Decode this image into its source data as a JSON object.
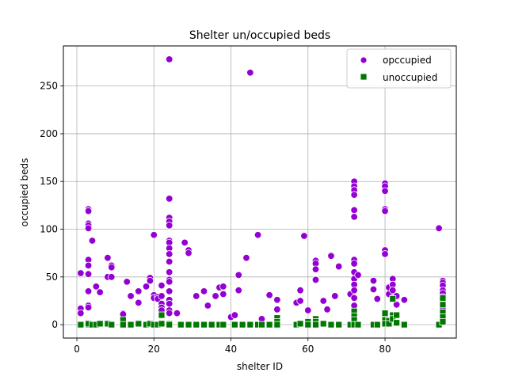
{
  "chart_data": {
    "type": "scatter",
    "title": "Shelter un/occupied beds",
    "xlabel": "shelter ID",
    "ylabel": "occupied beds",
    "xlim": [
      -3.5,
      98.5
    ],
    "ylim": [
      -14,
      292
    ],
    "xticks": [
      0,
      20,
      40,
      60,
      80
    ],
    "yticks": [
      0,
      50,
      100,
      150,
      200,
      250
    ],
    "grid": true,
    "legend_position": "top-right",
    "series": [
      {
        "name": "opccupied",
        "marker": "circle",
        "color": "#9400D3",
        "points": [
          [
            1,
            54
          ],
          [
            1,
            17
          ],
          [
            1,
            12
          ],
          [
            3,
            121
          ],
          [
            3,
            119
          ],
          [
            3,
            106
          ],
          [
            3,
            104
          ],
          [
            3,
            101
          ],
          [
            3,
            68
          ],
          [
            3,
            62
          ],
          [
            3,
            53
          ],
          [
            3,
            35
          ],
          [
            3,
            20
          ],
          [
            3,
            18
          ],
          [
            4,
            88
          ],
          [
            5,
            40
          ],
          [
            6,
            34
          ],
          [
            8,
            70
          ],
          [
            8,
            50
          ],
          [
            9,
            62
          ],
          [
            9,
            60
          ],
          [
            9,
            50
          ],
          [
            12,
            12
          ],
          [
            12,
            11
          ],
          [
            13,
            45
          ],
          [
            14,
            30
          ],
          [
            16,
            35
          ],
          [
            16,
            23
          ],
          [
            18,
            40
          ],
          [
            19,
            49
          ],
          [
            19,
            46
          ],
          [
            20,
            94
          ],
          [
            20,
            31
          ],
          [
            20,
            28
          ],
          [
            21,
            29
          ],
          [
            21,
            27
          ],
          [
            22,
            41
          ],
          [
            22,
            30
          ],
          [
            22,
            22
          ],
          [
            22,
            18
          ],
          [
            22,
            15
          ],
          [
            24,
            278
          ],
          [
            24,
            132
          ],
          [
            24,
            112
          ],
          [
            24,
            108
          ],
          [
            24,
            104
          ],
          [
            24,
            88
          ],
          [
            24,
            86
          ],
          [
            24,
            80
          ],
          [
            24,
            74
          ],
          [
            24,
            66
          ],
          [
            24,
            55
          ],
          [
            24,
            47
          ],
          [
            24,
            45
          ],
          [
            24,
            35
          ],
          [
            24,
            26
          ],
          [
            24,
            22
          ],
          [
            24,
            15
          ],
          [
            24,
            12
          ],
          [
            26,
            12
          ],
          [
            28,
            86
          ],
          [
            29,
            78
          ],
          [
            29,
            75
          ],
          [
            31,
            30
          ],
          [
            33,
            35
          ],
          [
            34,
            20
          ],
          [
            36,
            30
          ],
          [
            37,
            39
          ],
          [
            38,
            40
          ],
          [
            38,
            32
          ],
          [
            40,
            8
          ],
          [
            41,
            10
          ],
          [
            42,
            52
          ],
          [
            42,
            36
          ],
          [
            44,
            70
          ],
          [
            45,
            264
          ],
          [
            47,
            94
          ],
          [
            48,
            6
          ],
          [
            50,
            31
          ],
          [
            52,
            26
          ],
          [
            52,
            16
          ],
          [
            57,
            23
          ],
          [
            58,
            36
          ],
          [
            58,
            25
          ],
          [
            59,
            93
          ],
          [
            60,
            15
          ],
          [
            62,
            67
          ],
          [
            62,
            64
          ],
          [
            62,
            58
          ],
          [
            62,
            47
          ],
          [
            64,
            25
          ],
          [
            65,
            16
          ],
          [
            66,
            72
          ],
          [
            67,
            30
          ],
          [
            68,
            61
          ],
          [
            71,
            32
          ],
          [
            72,
            150
          ],
          [
            72,
            145
          ],
          [
            72,
            141
          ],
          [
            72,
            136
          ],
          [
            72,
            120
          ],
          [
            72,
            113
          ],
          [
            72,
            68
          ],
          [
            72,
            64
          ],
          [
            72,
            55
          ],
          [
            72,
            48
          ],
          [
            72,
            42
          ],
          [
            72,
            36
          ],
          [
            72,
            28
          ],
          [
            72,
            20
          ],
          [
            73,
            52
          ],
          [
            77,
            46
          ],
          [
            77,
            37
          ],
          [
            78,
            27
          ],
          [
            80,
            148
          ],
          [
            80,
            145
          ],
          [
            80,
            140
          ],
          [
            80,
            121
          ],
          [
            80,
            119
          ],
          [
            80,
            78
          ],
          [
            80,
            74
          ],
          [
            81,
            39
          ],
          [
            81,
            32
          ],
          [
            82,
            48
          ],
          [
            82,
            42
          ],
          [
            82,
            36
          ],
          [
            82,
            28
          ],
          [
            83,
            30
          ],
          [
            83,
            21
          ],
          [
            85,
            26
          ],
          [
            94,
            101
          ],
          [
            95,
            46
          ],
          [
            95,
            44
          ],
          [
            95,
            41
          ],
          [
            95,
            36
          ],
          [
            95,
            33
          ],
          [
            95,
            29
          ],
          [
            95,
            25
          ],
          [
            95,
            21
          ],
          [
            95,
            17
          ],
          [
            95,
            13
          ]
        ]
      },
      {
        "name": "unoccupied",
        "marker": "square",
        "color": "#007700",
        "points": [
          [
            1,
            0
          ],
          [
            3,
            0
          ],
          [
            3,
            1
          ],
          [
            4,
            0
          ],
          [
            5,
            0
          ],
          [
            6,
            1
          ],
          [
            8,
            1
          ],
          [
            9,
            0
          ],
          [
            12,
            5
          ],
          [
            12,
            0
          ],
          [
            14,
            0
          ],
          [
            16,
            1
          ],
          [
            18,
            0
          ],
          [
            19,
            1
          ],
          [
            20,
            0
          ],
          [
            21,
            0
          ],
          [
            22,
            10
          ],
          [
            22,
            1
          ],
          [
            24,
            1
          ],
          [
            24,
            0
          ],
          [
            27,
            0
          ],
          [
            29,
            0
          ],
          [
            31,
            0
          ],
          [
            33,
            0
          ],
          [
            35,
            0
          ],
          [
            37,
            0
          ],
          [
            38,
            0
          ],
          [
            41,
            0
          ],
          [
            43,
            0
          ],
          [
            45,
            0
          ],
          [
            47,
            0
          ],
          [
            48,
            0
          ],
          [
            50,
            0
          ],
          [
            52,
            7
          ],
          [
            52,
            3
          ],
          [
            52,
            0
          ],
          [
            57,
            0
          ],
          [
            58,
            1
          ],
          [
            60,
            3
          ],
          [
            60,
            0
          ],
          [
            62,
            6
          ],
          [
            62,
            3
          ],
          [
            62,
            0
          ],
          [
            64,
            1
          ],
          [
            66,
            0
          ],
          [
            68,
            0
          ],
          [
            71,
            0
          ],
          [
            72,
            14
          ],
          [
            72,
            9
          ],
          [
            72,
            5
          ],
          [
            72,
            0
          ],
          [
            73,
            0
          ],
          [
            77,
            0
          ],
          [
            78,
            0
          ],
          [
            80,
            12
          ],
          [
            80,
            5
          ],
          [
            80,
            1
          ],
          [
            81,
            4
          ],
          [
            81,
            1
          ],
          [
            82,
            27
          ],
          [
            82,
            10
          ],
          [
            82,
            6
          ],
          [
            83,
            10
          ],
          [
            83,
            2
          ],
          [
            85,
            0
          ],
          [
            94,
            0
          ],
          [
            95,
            28
          ],
          [
            95,
            21
          ],
          [
            95,
            13
          ],
          [
            95,
            8
          ],
          [
            95,
            3
          ]
        ]
      }
    ]
  }
}
